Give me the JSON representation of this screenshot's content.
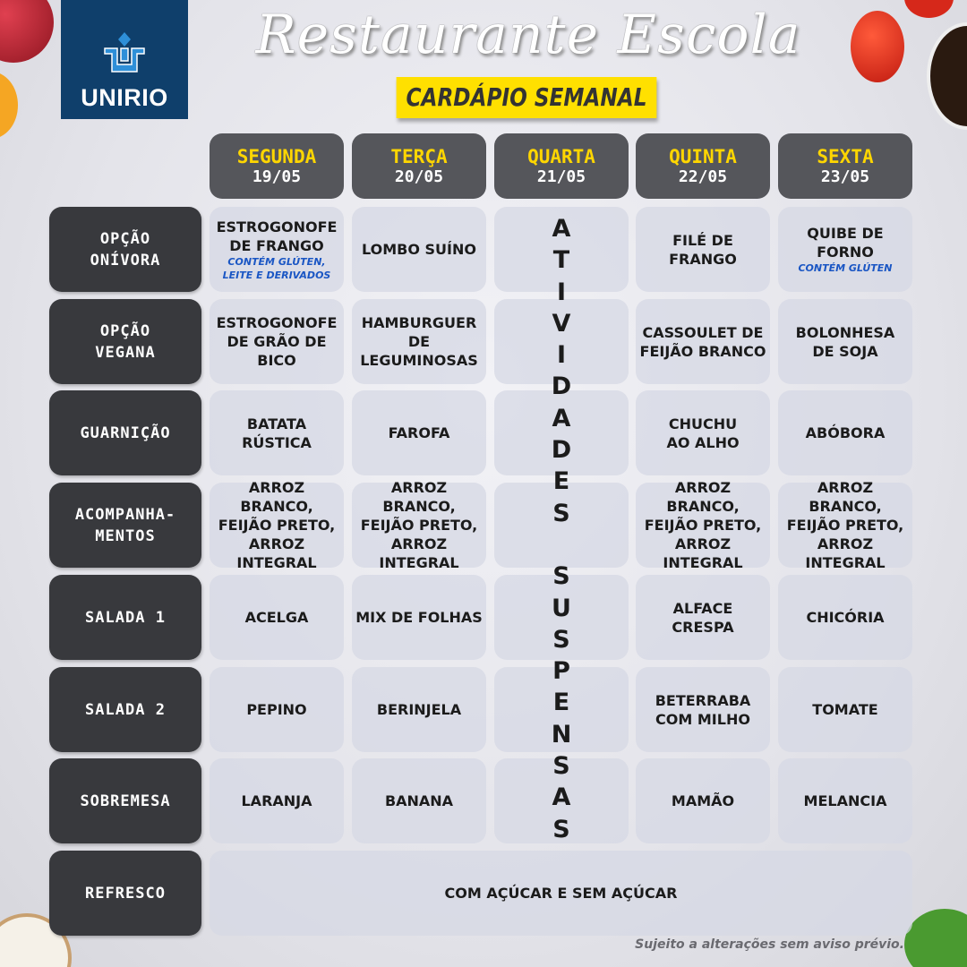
{
  "logo": {
    "text": "UNIRIO"
  },
  "title": "Restaurante Escola",
  "subtitle": "CARDÁPIO SEMANAL",
  "days": [
    {
      "name": "SEGUNDA",
      "date": "19/05"
    },
    {
      "name": "TERÇA",
      "date": "20/05"
    },
    {
      "name": "QUARTA",
      "date": "21/05"
    },
    {
      "name": "QUINTA",
      "date": "22/05"
    },
    {
      "name": "SEXTA",
      "date": "23/05"
    }
  ],
  "rows": [
    {
      "label": "OPÇÃO\nONÍVORA",
      "items": [
        {
          "text": "ESTROGONOFE\nDE FRANGO",
          "note": "CONTÉM GLÚTEN,\nLEITE E DERIVADOS"
        },
        {
          "text": "LOMBO SUÍNO"
        },
        null,
        {
          "text": "FILÉ DE FRANGO"
        },
        {
          "text": "QUIBE DE\nFORNO",
          "note": "CONTÉM GLÚTEN"
        }
      ]
    },
    {
      "label": "OPÇÃO\nVEGANA",
      "items": [
        {
          "text": "ESTROGONOFE\nDE GRÃO DE BICO"
        },
        {
          "text": "HAMBURGUER\nDE\nLEGUMINOSAS"
        },
        null,
        {
          "text": "CASSOULET DE\nFEIJÃO BRANCO"
        },
        {
          "text": "BOLONHESA\nDE SOJA"
        }
      ]
    },
    {
      "label": "GUARNIÇÃO",
      "items": [
        {
          "text": "BATATA\nRÚSTICA"
        },
        {
          "text": "FAROFA"
        },
        null,
        {
          "text": "CHUCHU\nAO ALHO"
        },
        {
          "text": "ABÓBORA"
        }
      ]
    },
    {
      "label": "ACOMPANHA-\nMENTOS",
      "items": [
        {
          "text": "ARROZ BRANCO,\nFEIJÃO PRETO,\nARROZ INTEGRAL"
        },
        {
          "text": "ARROZ BRANCO,\nFEIJÃO PRETO,\nARROZ INTEGRAL"
        },
        null,
        {
          "text": "ARROZ BRANCO,\nFEIJÃO PRETO,\nARROZ INTEGRAL"
        },
        {
          "text": "ARROZ BRANCO,\nFEIJÃO PRETO,\nARROZ INTEGRAL"
        }
      ]
    },
    {
      "label": "SALADA 1",
      "items": [
        {
          "text": "ACELGA"
        },
        {
          "text": "MIX DE FOLHAS"
        },
        null,
        {
          "text": "ALFACE\nCRESPA"
        },
        {
          "text": "CHICÓRIA"
        }
      ]
    },
    {
      "label": "SALADA 2",
      "items": [
        {
          "text": "PEPINO"
        },
        {
          "text": "BERINJELA"
        },
        null,
        {
          "text": "BETERRABA\nCOM MILHO"
        },
        {
          "text": "TOMATE"
        }
      ]
    },
    {
      "label": "SOBREMESA",
      "items": [
        {
          "text": "LARANJA"
        },
        {
          "text": "BANANA"
        },
        null,
        {
          "text": "MAMÃO"
        },
        {
          "text": "MELANCIA"
        }
      ]
    }
  ],
  "refresco": {
    "label": "REFRESCO",
    "text": "COM AÇÚCAR E SEM AÇÚCAR"
  },
  "suspended": "ATIVIDADES SUSPENSAS",
  "footer": "Sujeito a alterações sem aviso prévio.",
  "colors": {
    "logo_bg": "#0f3f6b",
    "accent_yellow": "#ffe000",
    "day_name": "#ffd600",
    "label_bg": "#38393d",
    "note": "#1a56c4"
  }
}
